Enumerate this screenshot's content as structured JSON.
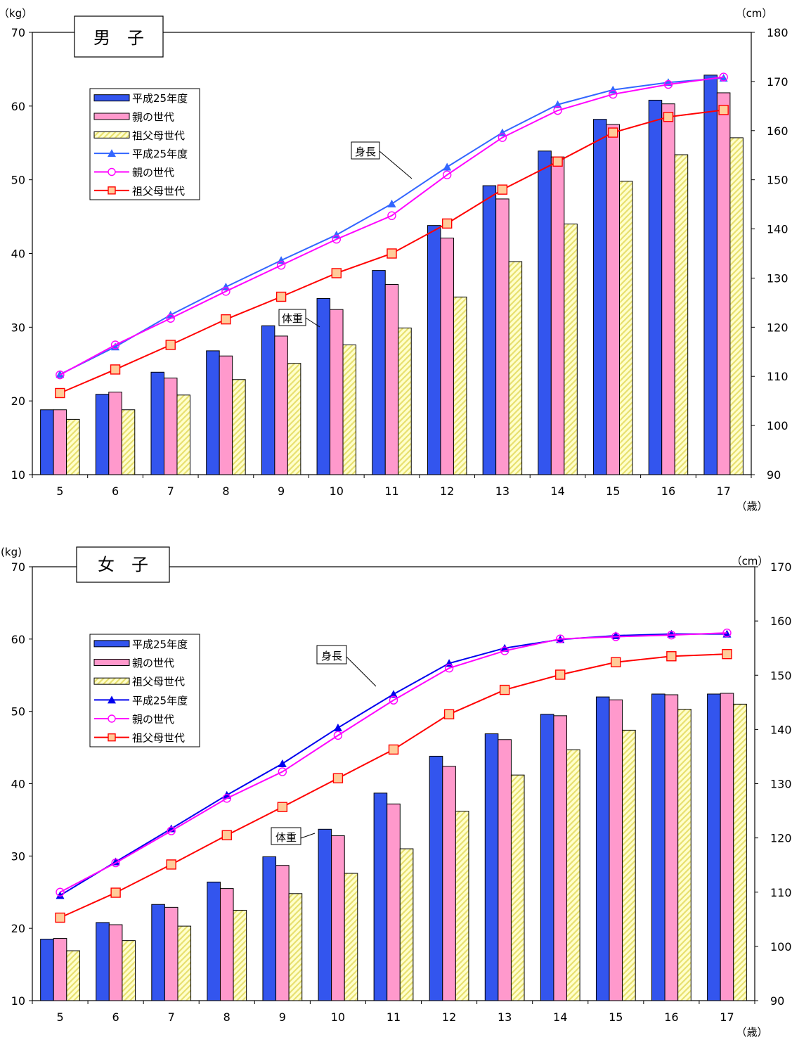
{
  "chart_data": [
    {
      "type": "bar",
      "title": "男　子",
      "x_unit": "（歳）",
      "y_left_unit": "（kg）",
      "y_right_unit": "（cm）",
      "categories": [
        "5",
        "6",
        "7",
        "8",
        "9",
        "10",
        "11",
        "12",
        "13",
        "14",
        "15",
        "16",
        "17"
      ],
      "ylim_left": [
        10,
        70
      ],
      "ylim_right": [
        90,
        180
      ],
      "yticks_left": [
        "10",
        "20",
        "30",
        "40",
        "50",
        "60",
        "70"
      ],
      "yticks_right": [
        "90",
        "100",
        "110",
        "120",
        "130",
        "140",
        "150",
        "160",
        "170",
        "180"
      ],
      "grid": false,
      "legend_position": "top-left",
      "weight_label": "体重",
      "height_label": "身長",
      "weight_series": [
        {
          "name": "平成25年度",
          "color": "#3355ee",
          "values": [
            18.8,
            20.9,
            23.9,
            26.8,
            30.2,
            33.9,
            37.7,
            43.8,
            49.2,
            53.9,
            58.2,
            60.8,
            64.2
          ]
        },
        {
          "name": "親の世代",
          "color": "#ff99cc",
          "values": [
            18.8,
            21.2,
            23.1,
            26.1,
            28.8,
            32.4,
            35.8,
            42.1,
            47.4,
            53.1,
            57.5,
            60.3,
            61.8
          ]
        },
        {
          "name": "祖父母世代",
          "color": "#ffffcc",
          "values": [
            17.5,
            18.8,
            20.8,
            22.9,
            25.1,
            27.6,
            29.9,
            34.1,
            38.9,
            44.0,
            49.8,
            53.4,
            55.7
          ]
        }
      ],
      "height_series": [
        {
          "name": "平成25年度",
          "color": "#3366ff",
          "marker": "triangle",
          "values": [
            110.4,
            116.0,
            122.5,
            128.2,
            133.6,
            138.8,
            145.1,
            152.6,
            159.6,
            165.3,
            168.3,
            169.8,
            170.7
          ]
        },
        {
          "name": "親の世代",
          "color": "#ff00ff",
          "marker": "circle",
          "values": [
            110.3,
            116.4,
            121.8,
            127.3,
            132.6,
            137.9,
            142.7,
            151.0,
            158.6,
            164.1,
            167.4,
            169.4,
            170.9
          ]
        },
        {
          "name": "祖父母世代",
          "color": "#ff0000",
          "marker": "square",
          "values": [
            106.6,
            111.4,
            116.4,
            121.6,
            126.2,
            131.0,
            135.0,
            141.1,
            148.0,
            153.7,
            159.6,
            162.8,
            164.2
          ]
        }
      ]
    },
    {
      "type": "bar",
      "title": "女　子",
      "x_unit": "（歳）",
      "y_left_unit": "(kg)",
      "y_right_unit": "（cm）",
      "categories": [
        "5",
        "6",
        "7",
        "8",
        "9",
        "10",
        "11",
        "12",
        "13",
        "14",
        "15",
        "16",
        "17"
      ],
      "ylim_left": [
        10,
        70
      ],
      "ylim_right": [
        90,
        170
      ],
      "yticks_left": [
        "10",
        "20",
        "30",
        "40",
        "50",
        "60",
        "70"
      ],
      "yticks_right": [
        "90",
        "100",
        "110",
        "120",
        "130",
        "140",
        "150",
        "160",
        "170"
      ],
      "grid": false,
      "legend_position": "top-left",
      "weight_label": "体重",
      "height_label": "身長",
      "weight_series": [
        {
          "name": "平成25年度",
          "color": "#3355ee",
          "values": [
            18.5,
            20.8,
            23.3,
            26.4,
            29.9,
            33.7,
            38.7,
            43.8,
            46.9,
            49.6,
            52.0,
            52.4,
            52.4
          ]
        },
        {
          "name": "親の世代",
          "color": "#ff99cc",
          "values": [
            18.6,
            20.5,
            22.9,
            25.5,
            28.7,
            32.8,
            37.2,
            42.4,
            46.1,
            49.4,
            51.6,
            52.3,
            52.5
          ]
        },
        {
          "name": "祖父母世代",
          "color": "#ffffcc",
          "values": [
            16.9,
            18.3,
            20.3,
            22.5,
            24.8,
            27.6,
            31.0,
            36.2,
            41.2,
            44.7,
            47.4,
            50.3,
            51.0
          ]
        }
      ],
      "height_series": [
        {
          "name": "平成25年度",
          "color": "#0000ee",
          "marker": "triangle",
          "values": [
            109.4,
            115.6,
            121.7,
            127.9,
            133.7,
            140.3,
            146.5,
            152.2,
            155.0,
            156.6,
            157.3,
            157.6,
            157.6
          ]
        },
        {
          "name": "親の世代",
          "color": "#ff00ff",
          "marker": "circle",
          "values": [
            110.0,
            115.4,
            121.3,
            127.3,
            132.2,
            138.9,
            145.4,
            151.3,
            154.5,
            156.7,
            157.1,
            157.4,
            157.8
          ]
        },
        {
          "name": "祖父母世代",
          "color": "#ff0000",
          "marker": "square",
          "values": [
            105.3,
            109.9,
            115.1,
            120.5,
            125.7,
            131.0,
            136.3,
            142.8,
            147.3,
            150.1,
            152.4,
            153.5,
            153.9
          ]
        }
      ]
    }
  ]
}
